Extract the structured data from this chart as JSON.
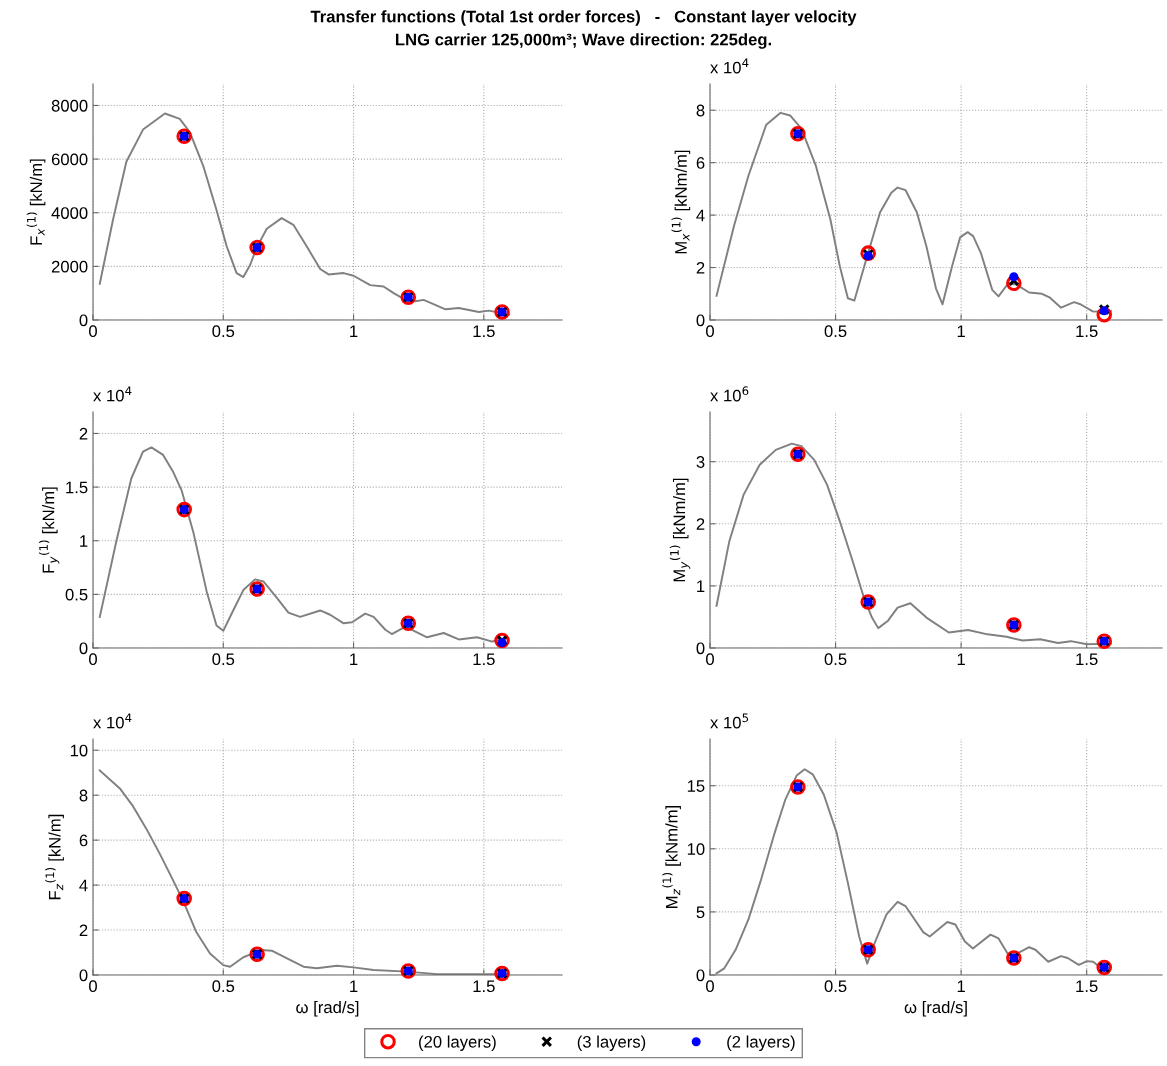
{
  "chart_data": [
    {
      "type": "line",
      "title": "Transfer functions (Total 1st order forces)   -   Constant layer velocity",
      "subtitle": "LNG carrier 125,000m³; Wave direction: 225deg.",
      "ylabel": "F$_{x}$$^{(1)}$ [kN/m]",
      "xlim": [
        0,
        1.8
      ],
      "xticks": [
        0,
        0.5,
        1,
        1.5
      ],
      "ylim": [
        0,
        8800
      ],
      "yticks": [
        0,
        2000,
        4000,
        6000,
        8000
      ],
      "grid": true,
      "series": [
        {
          "color": "#808080",
          "x": [
            0.026,
            0.077,
            0.128,
            0.192,
            0.276,
            0.333,
            0.372,
            0.423,
            0.474,
            0.513,
            0.551,
            0.577,
            0.603,
            0.628,
            0.667,
            0.724,
            0.769,
            0.82,
            0.872,
            0.904,
            0.962,
            1.0,
            1.064,
            1.115,
            1.154,
            1.199,
            1.237,
            1.269,
            1.353,
            1.404,
            1.481,
            1.519,
            1.596
          ],
          "values": [
            1350,
            3750,
            5900,
            7100,
            7700,
            7500,
            7000,
            5750,
            4100,
            2750,
            1750,
            1600,
            2050,
            2700,
            3400,
            3800,
            3550,
            2750,
            1900,
            1700,
            1750,
            1650,
            1300,
            1250,
            1000,
            750,
            700,
            750,
            400,
            450,
            300,
            350,
            200
          ]
        },
        {
          "type": "scatter",
          "marker": "circle",
          "color": "#ff0000",
          "x": [
            0.35,
            0.63,
            1.21,
            1.57
          ],
          "values": [
            6850,
            2700,
            850,
            300
          ]
        },
        {
          "type": "scatter",
          "marker": "cross",
          "color": "#000000",
          "x": [
            0.35,
            0.63,
            1.21,
            1.57
          ],
          "values": [
            6850,
            2700,
            850,
            300
          ]
        },
        {
          "type": "scatter",
          "marker": "circle",
          "color": "#0000ff",
          "x": [
            0.35,
            0.63,
            1.21,
            1.57
          ],
          "values": [
            6850,
            2700,
            850,
            300
          ]
        }
      ]
    },
    {
      "type": "line",
      "ylabel": "M$_{x}$$^{(1)}$ [kNm/m]",
      "annotations": [
        "x 10$^{4}$"
      ],
      "xlim": [
        0,
        1.8
      ],
      "xticks": [
        0,
        0.5,
        1,
        1.5
      ],
      "ylim": [
        0,
        9
      ],
      "yticks": [
        0,
        2,
        4,
        6,
        8
      ],
      "grid": true,
      "series": [
        {
          "color": "#808080",
          "x": [
            0.026,
            0.096,
            0.153,
            0.224,
            0.281,
            0.319,
            0.364,
            0.421,
            0.479,
            0.517,
            0.549,
            0.575,
            0.619,
            0.677,
            0.722,
            0.747,
            0.779,
            0.824,
            0.862,
            0.9,
            0.926,
            0.964,
            0.996,
            1.026,
            1.048,
            1.079,
            1.124,
            1.149,
            1.188,
            1.22,
            1.271,
            1.322,
            1.354,
            1.398,
            1.45,
            1.475,
            1.526,
            1.596
          ],
          "values": [
            0.92,
            3.6,
            5.5,
            7.45,
            7.9,
            7.8,
            7.3,
            5.9,
            3.85,
            2.05,
            0.83,
            0.74,
            2.2,
            4.1,
            4.85,
            5.05,
            4.95,
            4.1,
            2.8,
            1.2,
            0.6,
            2.05,
            3.15,
            3.35,
            3.2,
            2.55,
            1.15,
            0.9,
            1.4,
            1.35,
            1.05,
            1.0,
            0.85,
            0.47,
            0.68,
            0.6,
            0.32,
            0.35
          ]
        },
        {
          "type": "scatter",
          "marker": "circle",
          "color": "#ff0000",
          "x": [
            0.35,
            0.63,
            1.21,
            1.57
          ],
          "values": [
            7.1,
            2.55,
            1.4,
            0.2
          ]
        },
        {
          "type": "scatter",
          "marker": "cross",
          "color": "#000000",
          "x": [
            0.35,
            0.63,
            1.21,
            1.57
          ],
          "values": [
            7.1,
            2.5,
            1.5,
            0.4
          ]
        },
        {
          "type": "scatter",
          "marker": "circle",
          "color": "#0000ff",
          "x": [
            0.35,
            0.63,
            1.21,
            1.57
          ],
          "values": [
            7.1,
            2.45,
            1.65,
            0.35
          ]
        }
      ]
    },
    {
      "type": "line",
      "ylabel": "F$_{y}$$^{(1)}$ [kN/m]",
      "annotations": [
        "x 10$^{4}$"
      ],
      "xlim": [
        0,
        1.8
      ],
      "xticks": [
        0,
        0.5,
        1,
        1.5
      ],
      "ylim": [
        0,
        2.2
      ],
      "yticks": [
        0,
        0.5,
        1,
        1.5,
        2
      ],
      "grid": true,
      "series": [
        {
          "color": "#808080",
          "x": [
            0.026,
            0.09,
            0.147,
            0.192,
            0.224,
            0.269,
            0.308,
            0.34,
            0.385,
            0.436,
            0.474,
            0.5,
            0.538,
            0.577,
            0.622,
            0.654,
            0.705,
            0.75,
            0.795,
            0.872,
            0.91,
            0.962,
            0.994,
            1.045,
            1.077,
            1.122,
            1.147,
            1.199,
            1.282,
            1.346,
            1.404,
            1.474,
            1.532,
            1.59
          ],
          "values": [
            0.29,
            1.0,
            1.58,
            1.83,
            1.87,
            1.8,
            1.64,
            1.47,
            1.08,
            0.53,
            0.21,
            0.16,
            0.35,
            0.54,
            0.64,
            0.62,
            0.47,
            0.33,
            0.29,
            0.35,
            0.31,
            0.23,
            0.24,
            0.32,
            0.29,
            0.17,
            0.13,
            0.2,
            0.1,
            0.14,
            0.08,
            0.1,
            0.06,
            0.09
          ]
        },
        {
          "type": "scatter",
          "marker": "circle",
          "color": "#ff0000",
          "x": [
            0.35,
            0.63,
            1.21,
            1.57
          ],
          "values": [
            1.29,
            0.55,
            0.23,
            0.07
          ]
        },
        {
          "type": "scatter",
          "marker": "cross",
          "color": "#000000",
          "x": [
            0.35,
            0.63,
            1.21,
            1.57
          ],
          "values": [
            1.29,
            0.55,
            0.23,
            0.07
          ]
        },
        {
          "type": "scatter",
          "marker": "circle",
          "color": "#0000ff",
          "x": [
            0.35,
            0.63,
            1.21,
            1.57
          ],
          "values": [
            1.29,
            0.55,
            0.23,
            0.05
          ]
        }
      ]
    },
    {
      "type": "line",
      "ylabel": "M$_{y}$$^{(1)}$ [kNm/m]",
      "annotations": [
        "x 10$^{6}$"
      ],
      "xlim": [
        0,
        1.8
      ],
      "xticks": [
        0,
        0.5,
        1,
        1.5
      ],
      "ylim": [
        0,
        3.8
      ],
      "yticks": [
        0,
        1,
        2,
        3
      ],
      "grid": true,
      "series": [
        {
          "color": "#808080",
          "x": [
            0.026,
            0.077,
            0.134,
            0.198,
            0.262,
            0.326,
            0.364,
            0.415,
            0.466,
            0.517,
            0.568,
            0.613,
            0.645,
            0.67,
            0.709,
            0.747,
            0.798,
            0.862,
            0.951,
            1.028,
            1.105,
            1.181,
            1.245,
            1.315,
            1.386,
            1.437,
            1.501,
            1.596
          ],
          "values": [
            0.68,
            1.72,
            2.47,
            2.95,
            3.19,
            3.29,
            3.25,
            3.03,
            2.63,
            2.04,
            1.4,
            0.81,
            0.49,
            0.32,
            0.44,
            0.65,
            0.72,
            0.49,
            0.25,
            0.29,
            0.22,
            0.18,
            0.12,
            0.14,
            0.08,
            0.11,
            0.06,
            0.07
          ]
        },
        {
          "type": "scatter",
          "marker": "circle",
          "color": "#ff0000",
          "x": [
            0.35,
            0.63,
            1.21,
            1.57
          ],
          "values": [
            3.12,
            0.74,
            0.37,
            0.11
          ]
        },
        {
          "type": "scatter",
          "marker": "cross",
          "color": "#000000",
          "x": [
            0.35,
            0.63,
            1.21,
            1.57
          ],
          "values": [
            3.12,
            0.74,
            0.37,
            0.11
          ]
        },
        {
          "type": "scatter",
          "marker": "circle",
          "color": "#0000ff",
          "x": [
            0.35,
            0.63,
            1.21,
            1.57
          ],
          "values": [
            3.12,
            0.74,
            0.37,
            0.11
          ]
        }
      ]
    },
    {
      "type": "line",
      "ylabel": "F$_{z}$$^{(1)}$ [kN/m]",
      "xlabel": "ω [rad/s]",
      "annotations": [
        "x 10$^{4}$"
      ],
      "xlim": [
        0,
        1.8
      ],
      "xticks": [
        0,
        0.5,
        1,
        1.5
      ],
      "ylim": [
        0,
        10.5
      ],
      "yticks": [
        0,
        2,
        4,
        6,
        8,
        10
      ],
      "grid": true,
      "series": [
        {
          "color": "#808080",
          "x": [
            0.026,
            0.103,
            0.154,
            0.205,
            0.256,
            0.308,
            0.346,
            0.397,
            0.449,
            0.5,
            0.526,
            0.577,
            0.647,
            0.686,
            0.756,
            0.808,
            0.859,
            0.936,
            1.0,
            1.077,
            1.205,
            1.321,
            1.5,
            1.59
          ],
          "values": [
            9.1,
            8.3,
            7.5,
            6.5,
            5.4,
            4.2,
            3.3,
            1.9,
            0.96,
            0.44,
            0.37,
            0.79,
            1.11,
            1.08,
            0.67,
            0.37,
            0.3,
            0.41,
            0.34,
            0.22,
            0.15,
            0.04,
            0.04,
            0.04
          ]
        },
        {
          "type": "scatter",
          "marker": "circle",
          "color": "#ff0000",
          "x": [
            0.35,
            0.63,
            1.21,
            1.57
          ],
          "values": [
            3.4,
            0.92,
            0.18,
            0.07
          ]
        },
        {
          "type": "scatter",
          "marker": "cross",
          "color": "#000000",
          "x": [
            0.35,
            0.63,
            1.21,
            1.57
          ],
          "values": [
            3.4,
            0.92,
            0.18,
            0.07
          ]
        },
        {
          "type": "scatter",
          "marker": "circle",
          "color": "#0000ff",
          "x": [
            0.35,
            0.63,
            1.21,
            1.57
          ],
          "values": [
            3.4,
            0.92,
            0.18,
            0.07
          ]
        }
      ]
    },
    {
      "type": "line",
      "ylabel": "M$_{z}$$^{(1)}$ [kNm/m]",
      "xlabel": "ω [rad/s]",
      "annotations": [
        "x 10$^{5}$"
      ],
      "xlim": [
        0,
        1.8
      ],
      "xticks": [
        0,
        0.5,
        1,
        1.5
      ],
      "ylim": [
        0,
        18.7
      ],
      "yticks": [
        0,
        5,
        10,
        15
      ],
      "grid": true,
      "legend": "bottom",
      "series": [
        {
          "color": "#808080",
          "x": [
            0.026,
            0.057,
            0.102,
            0.153,
            0.204,
            0.255,
            0.3,
            0.345,
            0.377,
            0.409,
            0.453,
            0.504,
            0.549,
            0.594,
            0.626,
            0.658,
            0.703,
            0.747,
            0.779,
            0.849,
            0.875,
            0.945,
            0.977,
            1.015,
            1.047,
            1.117,
            1.149,
            1.188,
            1.213,
            1.271,
            1.296,
            1.347,
            1.398,
            1.424,
            1.469,
            1.501,
            1.526,
            1.564
          ],
          "values": [
            0.13,
            0.53,
            2.0,
            4.4,
            7.6,
            11.1,
            13.9,
            15.8,
            16.3,
            15.9,
            14.3,
            11.3,
            7.3,
            3.05,
            0.9,
            2.65,
            4.8,
            5.8,
            5.45,
            3.4,
            3.05,
            4.2,
            4.0,
            2.65,
            2.1,
            3.2,
            2.9,
            1.6,
            1.6,
            2.2,
            2.0,
            1.05,
            1.5,
            1.35,
            0.8,
            1.1,
            1.05,
            0.45
          ]
        },
        {
          "type": "scatter",
          "marker": "circle",
          "color": "#ff0000",
          "name": "(20 layers)",
          "x": [
            0.35,
            0.63,
            1.21,
            1.57
          ],
          "values": [
            14.9,
            2.0,
            1.35,
            0.6
          ]
        },
        {
          "type": "scatter",
          "marker": "cross",
          "color": "#000000",
          "name": "(3 layers)",
          "x": [
            0.35,
            0.63,
            1.21,
            1.57
          ],
          "values": [
            14.9,
            2.0,
            1.35,
            0.6
          ]
        },
        {
          "type": "scatter",
          "marker": "circle",
          "color": "#0000ff",
          "name": "(2 layers)",
          "x": [
            0.35,
            0.63,
            1.21,
            1.57
          ],
          "values": [
            14.9,
            2.0,
            1.35,
            0.6
          ]
        }
      ]
    }
  ]
}
